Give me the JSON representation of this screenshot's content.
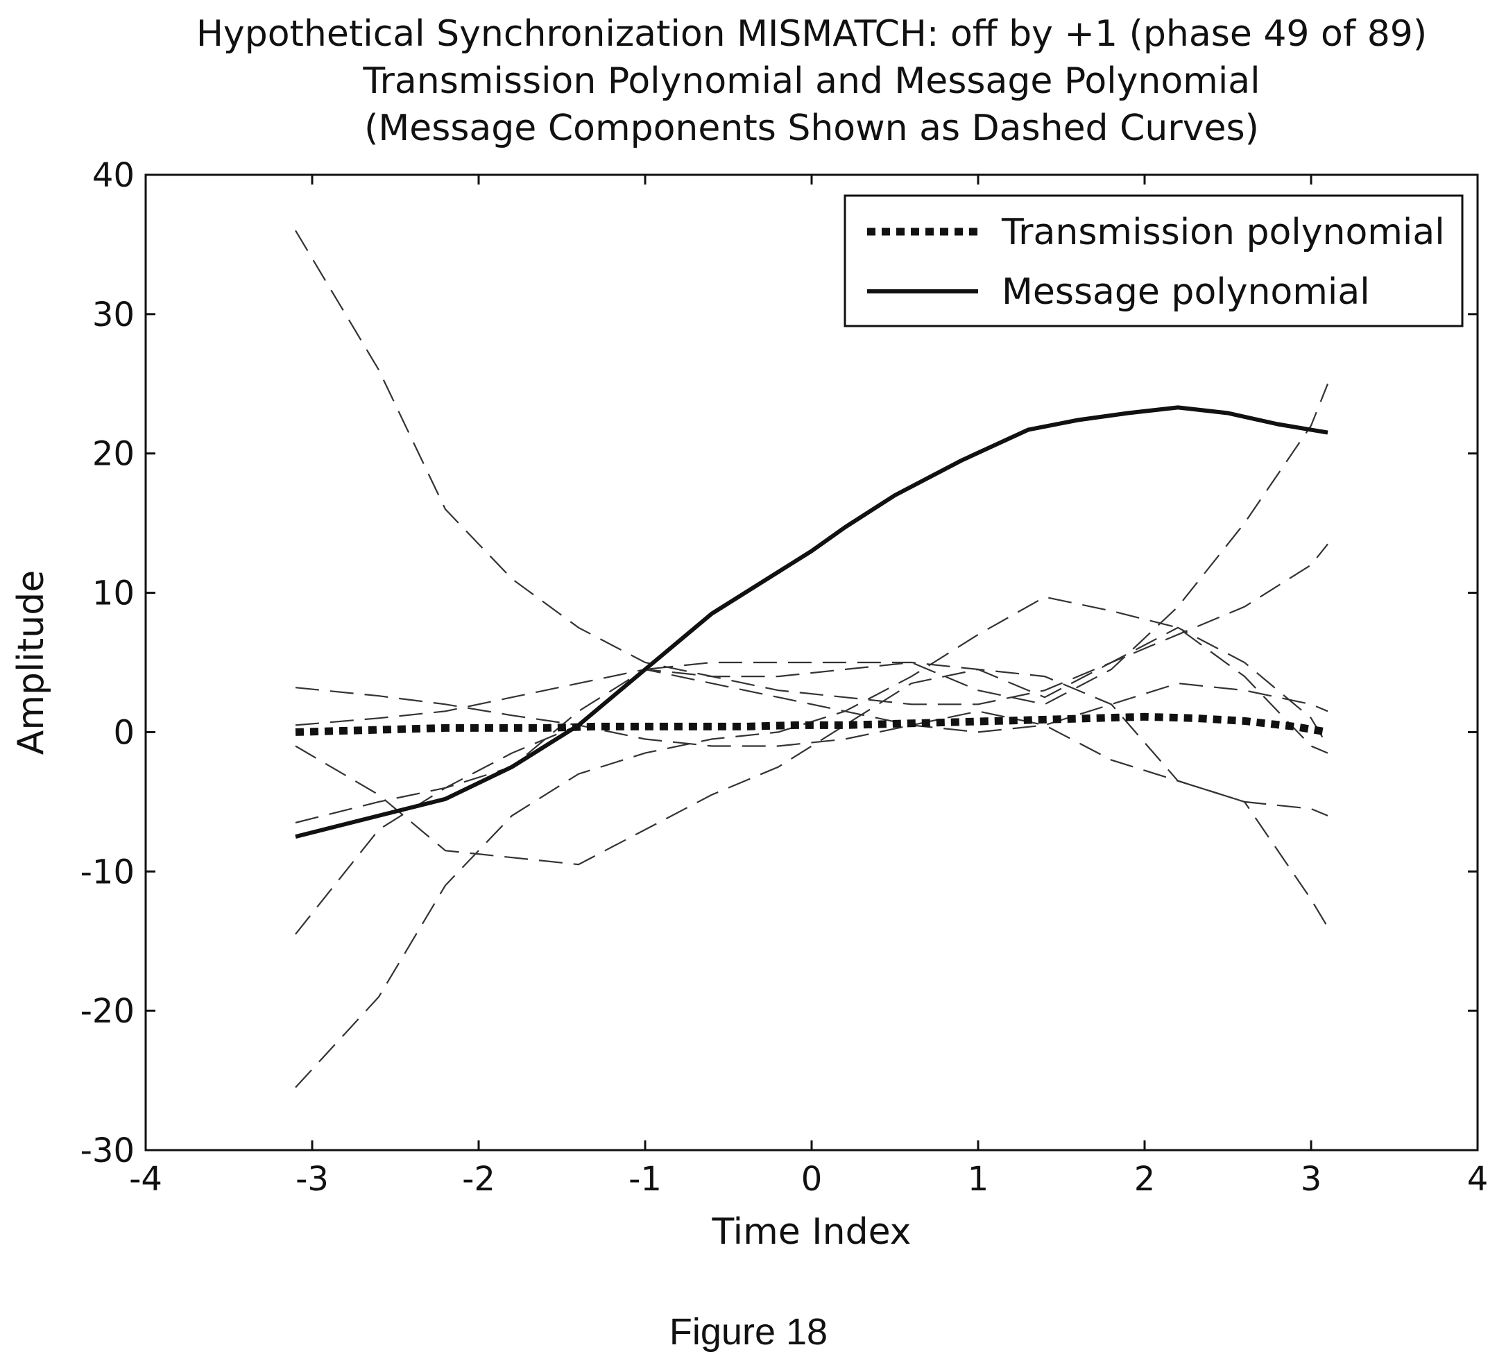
{
  "chart_data": {
    "type": "line",
    "title": [
      "Hypothetical Synchronization MISMATCH: off by +1 (phase 49 of 89)",
      "Transmission Polynomial and Message Polynomial",
      "(Message Components Shown as Dashed Curves)"
    ],
    "xlabel": "Time Index",
    "ylabel": "Amplitude",
    "xlim": [
      -4,
      4
    ],
    "ylim": [
      -30,
      40
    ],
    "xticks": [
      -4,
      -3,
      -2,
      -1,
      0,
      1,
      2,
      3,
      4
    ],
    "yticks": [
      -30,
      -20,
      -10,
      0,
      10,
      20,
      30,
      40
    ],
    "grid": false,
    "legend_position": "top-right",
    "legend": [
      {
        "label": "Transmission polynomial",
        "style": "dotted-thick"
      },
      {
        "label": "Message polynomial",
        "style": "solid"
      }
    ],
    "series": [
      {
        "name": "Transmission polynomial",
        "style": "dotted-thick",
        "x": [
          -3.1,
          -2.8,
          -2.5,
          -2.2,
          -1.9,
          -1.6,
          -1.3,
          -1.0,
          -0.7,
          -0.4,
          -0.1,
          0.2,
          0.5,
          0.8,
          1.1,
          1.4,
          1.7,
          2.0,
          2.3,
          2.6,
          2.9,
          3.1
        ],
        "y": [
          0.0,
          0.1,
          0.2,
          0.3,
          0.3,
          0.3,
          0.4,
          0.4,
          0.4,
          0.4,
          0.5,
          0.5,
          0.6,
          0.7,
          0.8,
          0.9,
          1.0,
          1.1,
          1.0,
          0.8,
          0.4,
          0.0
        ]
      },
      {
        "name": "Message polynomial",
        "style": "solid",
        "x": [
          -3.1,
          -2.6,
          -2.2,
          -1.8,
          -1.4,
          -1.0,
          -0.6,
          -0.2,
          0.0,
          0.2,
          0.5,
          0.9,
          1.3,
          1.6,
          1.9,
          2.2,
          2.5,
          2.8,
          3.1
        ],
        "y": [
          -7.5,
          -6.0,
          -4.8,
          -2.5,
          0.5,
          4.5,
          8.5,
          11.5,
          13.0,
          14.7,
          17.0,
          19.5,
          21.7,
          22.4,
          22.9,
          23.3,
          22.9,
          22.1,
          21.5
        ]
      },
      {
        "style": "dashed",
        "x": [
          -3.1,
          -2.6,
          -2.2,
          -1.8,
          -1.4,
          -1.0,
          -0.6,
          -0.2,
          0.2,
          0.6,
          1.0,
          1.4,
          1.8,
          2.2,
          2.6,
          3.0,
          3.1
        ],
        "y": [
          36.0,
          26.0,
          16.0,
          11.0,
          7.5,
          5.0,
          4.0,
          3.0,
          2.5,
          2.0,
          2.0,
          3.0,
          5.0,
          7.5,
          5.0,
          1.0,
          -1.0
        ]
      },
      {
        "style": "dashed",
        "x": [
          -3.1,
          -2.6,
          -2.2,
          -1.8,
          -1.4,
          -1.0,
          -0.6,
          -0.2,
          0.2,
          0.6,
          1.0,
          1.4,
          1.8,
          2.2,
          2.6,
          3.0,
          3.1
        ],
        "y": [
          -25.5,
          -19.0,
          -11.0,
          -6.0,
          -3.0,
          -1.5,
          -0.5,
          0.0,
          1.5,
          4.0,
          7.0,
          9.7,
          8.7,
          7.5,
          4.0,
          -1.0,
          -1.5
        ]
      },
      {
        "style": "dashed",
        "x": [
          -3.1,
          -2.6,
          -2.2,
          -1.8,
          -1.4,
          -1.0,
          -0.6,
          -0.2,
          0.2,
          0.6,
          1.0,
          1.4,
          1.8,
          2.2,
          2.6,
          3.0,
          3.1
        ],
        "y": [
          -14.5,
          -7.0,
          -4.0,
          -1.5,
          0.5,
          4.5,
          5.0,
          5.0,
          5.0,
          5.0,
          4.5,
          4.0,
          2.0,
          -3.5,
          -5.0,
          -12.0,
          -14.0
        ]
      },
      {
        "style": "dashed",
        "x": [
          -3.1,
          -2.6,
          -2.2,
          -1.8,
          -1.4,
          -1.0,
          -0.6,
          -0.2,
          0.2,
          0.6,
          1.0,
          1.4,
          1.8,
          2.2,
          2.6,
          3.0,
          3.1
        ],
        "y": [
          -6.5,
          -5.0,
          -4.0,
          -2.5,
          1.5,
          4.5,
          4.0,
          4.0,
          4.5,
          5.0,
          3.0,
          2.0,
          4.5,
          9.0,
          15.0,
          22.0,
          25.0
        ]
      },
      {
        "style": "dashed",
        "x": [
          -3.1,
          -2.6,
          -2.2,
          -1.8,
          -1.4,
          -1.0,
          -0.6,
          -0.2,
          0.2,
          0.6,
          1.0,
          1.4,
          1.8,
          2.2,
          2.6,
          3.0,
          3.1
        ],
        "y": [
          -1.0,
          -4.5,
          -8.5,
          -9.0,
          -9.5,
          -7.0,
          -4.5,
          -2.5,
          0.5,
          3.5,
          4.5,
          2.5,
          5.0,
          7.0,
          9.0,
          12.0,
          13.5
        ]
      },
      {
        "style": "dashed",
        "x": [
          -3.1,
          -2.6,
          -2.2,
          -1.8,
          -1.4,
          -1.0,
          -0.6,
          -0.2,
          0.2,
          0.6,
          1.0,
          1.4,
          1.8,
          2.2,
          2.6,
          3.0,
          3.1
        ],
        "y": [
          3.2,
          2.6,
          2.0,
          1.2,
          0.5,
          -0.5,
          -1.0,
          -1.0,
          -0.5,
          0.5,
          1.5,
          0.5,
          -2.0,
          -3.5,
          -5.0,
          -5.5,
          -6.0
        ]
      },
      {
        "style": "dashed",
        "x": [
          -3.1,
          -2.6,
          -2.2,
          -1.8,
          -1.4,
          -1.0,
          -0.6,
          -0.2,
          0.2,
          0.6,
          1.0,
          1.4,
          1.8,
          2.2,
          2.6,
          3.0,
          3.1
        ],
        "y": [
          0.5,
          1.0,
          1.5,
          2.5,
          3.5,
          4.5,
          3.5,
          2.5,
          1.5,
          0.5,
          0.0,
          0.5,
          2.0,
          3.5,
          3.0,
          2.0,
          1.5
        ]
      }
    ]
  },
  "caption": "Figure 18"
}
